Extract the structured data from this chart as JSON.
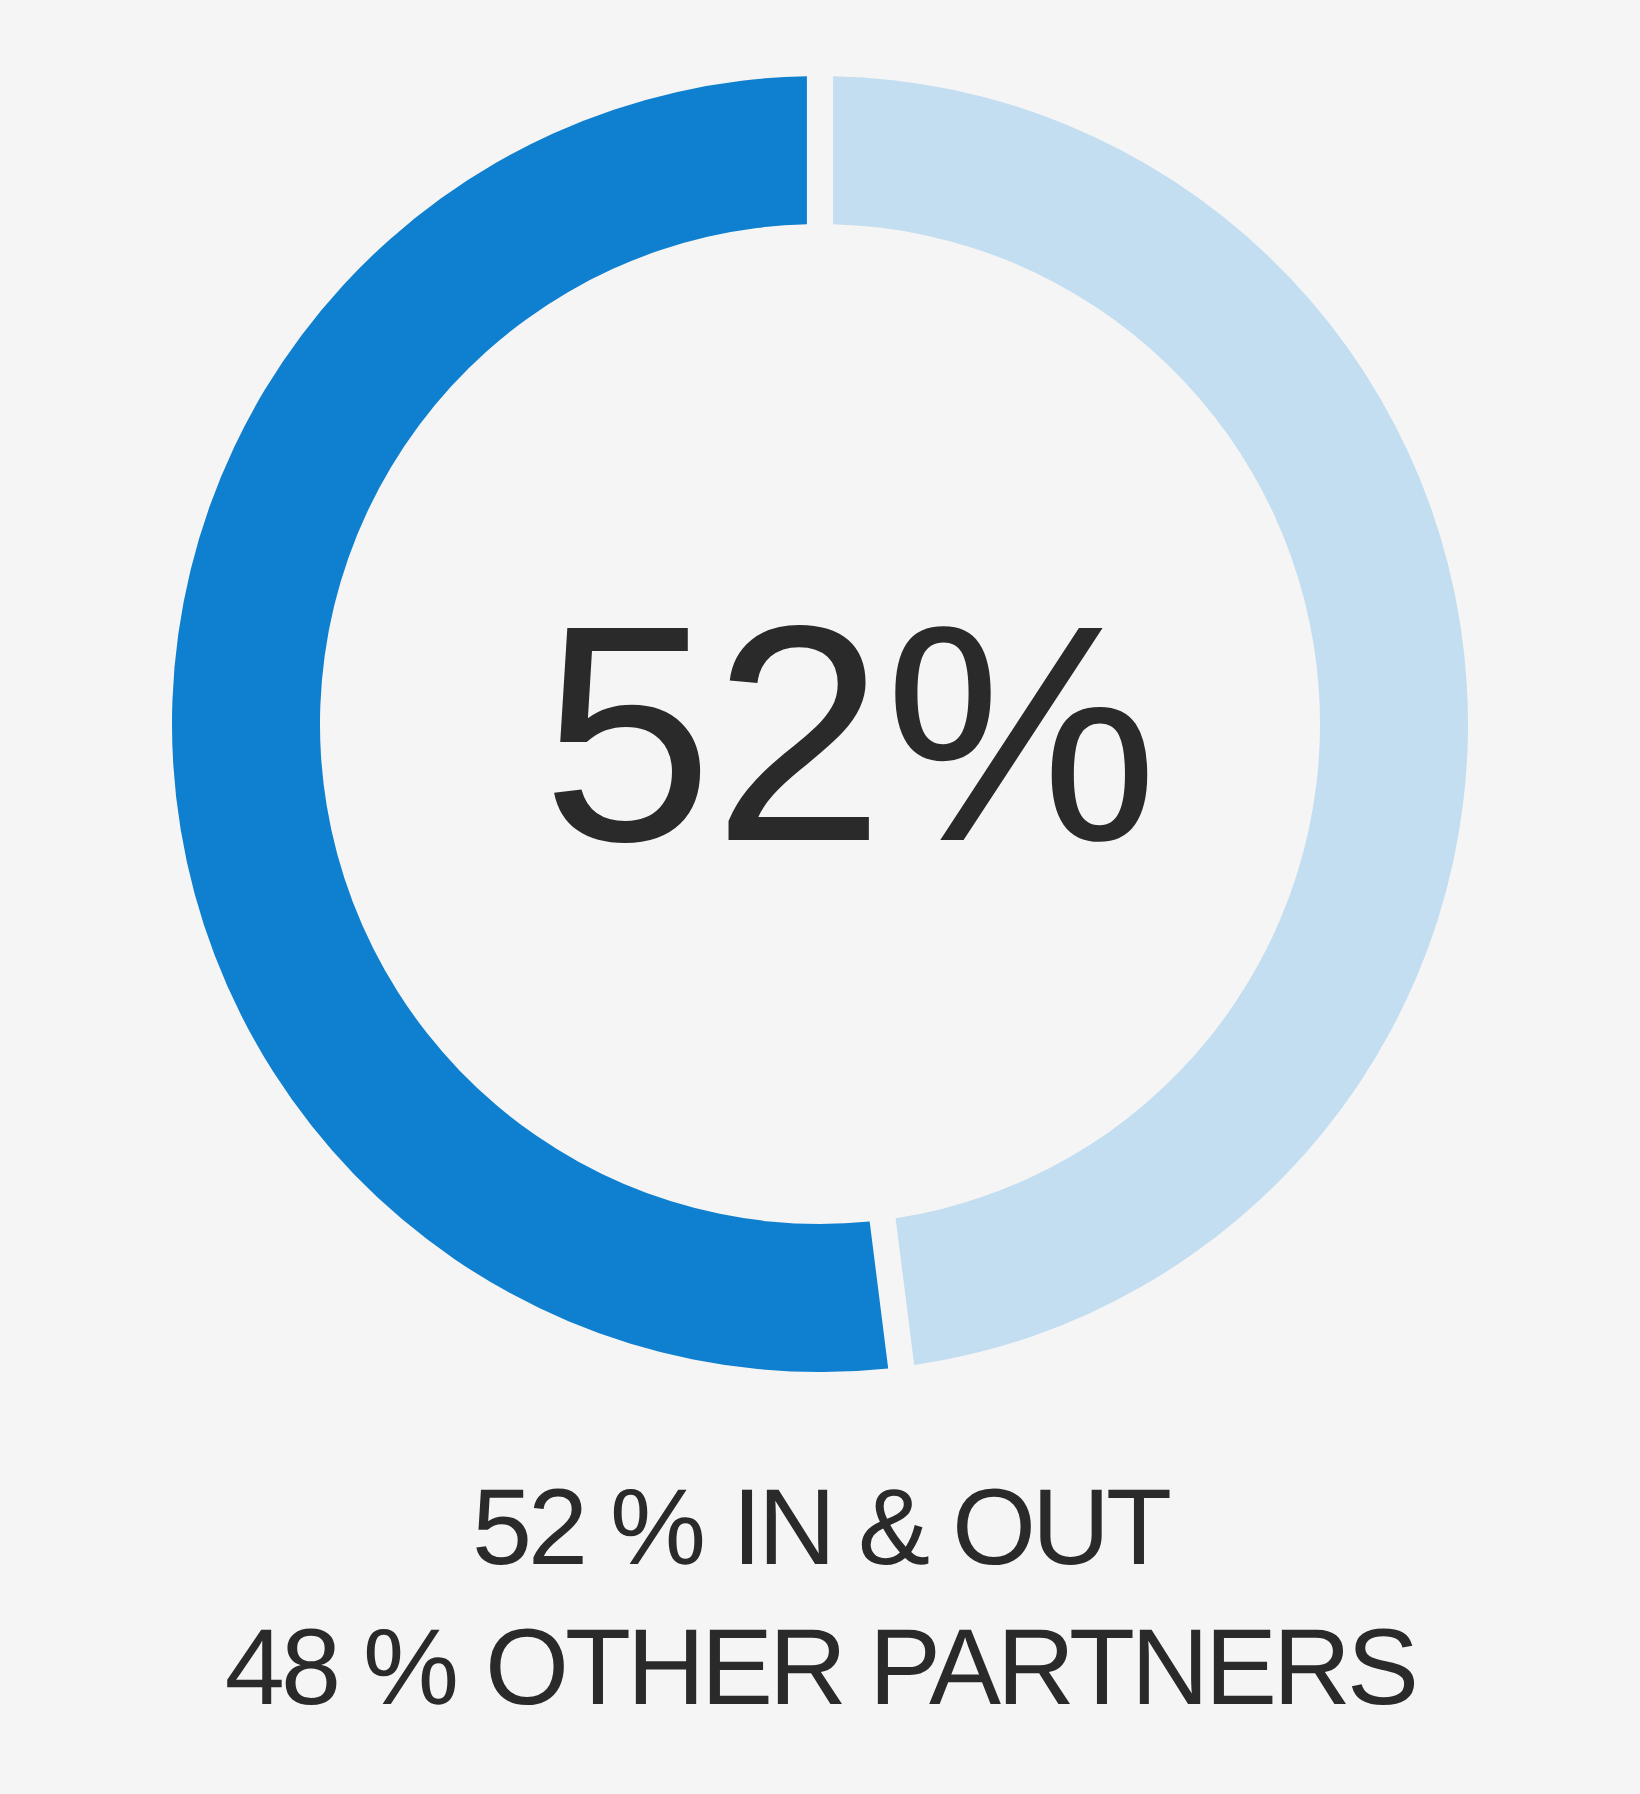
{
  "chart_data": {
    "type": "donut",
    "categories": [
      "IN & OUT",
      "OTHER PARTNERS"
    ],
    "values": [
      52,
      48
    ],
    "value_labels": [
      "52 %",
      "48 %"
    ],
    "colors": [
      "#0f7fcf",
      "#c3ddf1"
    ],
    "annotations": [
      "52%"
    ]
  }
}
